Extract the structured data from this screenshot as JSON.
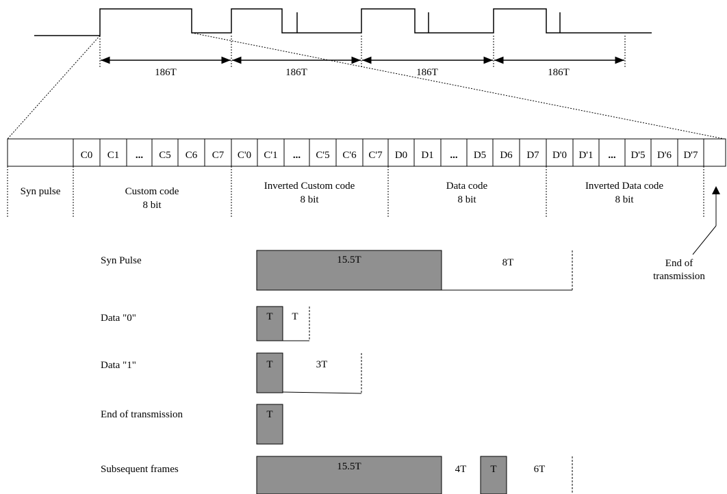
{
  "spans": [
    {
      "label": "186T"
    },
    {
      "label": "186T"
    },
    {
      "label": "186T"
    },
    {
      "label": "186T"
    }
  ],
  "frame_cells": [
    "",
    "C0",
    "C1",
    "...",
    "C5",
    "C6",
    "C7",
    "C'0",
    "C'1",
    "...",
    "C'5",
    "C'6",
    "C'7",
    "D0",
    "D1",
    "...",
    "D5",
    "D6",
    "D7",
    "D'0",
    "D'1",
    "...",
    "D'5",
    "D'6",
    "D'7",
    ""
  ],
  "groups": {
    "syn": "Syn pulse",
    "custom_l1": "Custom code",
    "custom_l2": "8 bit",
    "inv_custom_l1": "Inverted Custom code",
    "inv_custom_l2": "8 bit",
    "data_l1": "Data code",
    "data_l2": "8 bit",
    "inv_data_l1": "Inverted Data code",
    "inv_data_l2": "8 bit"
  },
  "end_marker": {
    "line1": "End of",
    "line2": "transmission"
  },
  "timing_rows": [
    {
      "label": "Syn Pulse",
      "high": "15.5T",
      "low": "8T"
    },
    {
      "label": "Data  \"0\"",
      "high": "T",
      "low": "T"
    },
    {
      "label": "Data  \"1\"",
      "high": "T",
      "low": "3T"
    },
    {
      "label": "End of transmission",
      "high": "T"
    },
    {
      "label": "Subsequent frames",
      "high": "15.5T",
      "low": "4T",
      "high2": "T",
      "low2": "6T"
    }
  ],
  "colors": {
    "pulse_fill": "#909090",
    "line": "#000000"
  }
}
